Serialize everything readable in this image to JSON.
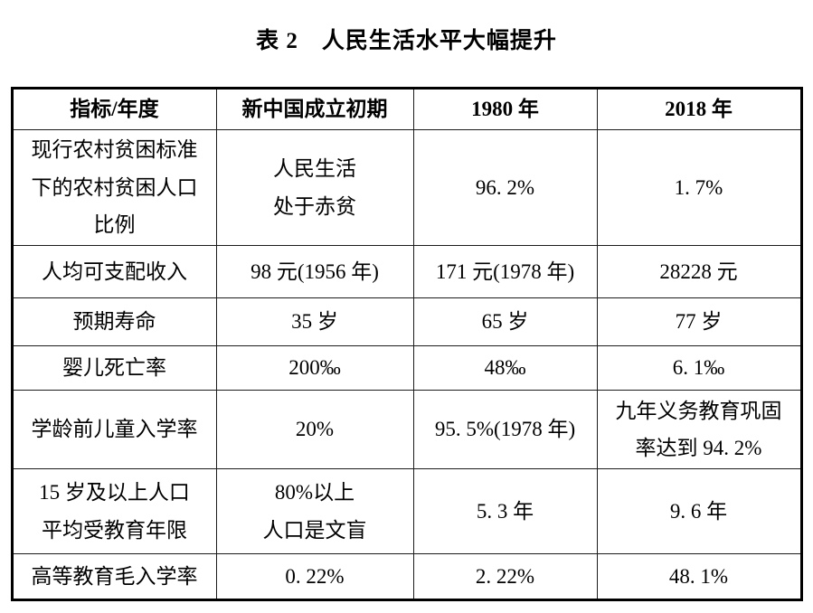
{
  "page": {
    "title": "表 2　人民生活水平大幅提升"
  },
  "colors": {
    "background": "#ffffff",
    "text": "#000000",
    "border": "#000000"
  },
  "table": {
    "header": [
      "指标/年度",
      "新中国成立初期",
      "1980 年",
      "2018 年"
    ],
    "rows": [
      {
        "cells": [
          "现行农村贫困标准\n下的农村贫困人口\n比例",
          "人民生活\n处于赤贫",
          "96. 2%",
          "1. 7%"
        ]
      },
      {
        "cells": [
          "人均可支配收入",
          "98 元(1956 年)",
          "171 元(1978 年)",
          "28228 元"
        ]
      },
      {
        "cells": [
          "预期寿命",
          "35 岁",
          "65 岁",
          "77 岁"
        ]
      },
      {
        "cells": [
          "婴儿死亡率",
          "200‰",
          "48‰",
          "6. 1‰"
        ]
      },
      {
        "cells": [
          "学龄前儿童入学率",
          "20%",
          "95. 5%(1978 年)",
          "九年义务教育巩固\n率达到 94. 2%"
        ]
      },
      {
        "cells": [
          "15 岁及以上人口\n平均受教育年限",
          "80%以上\n人口是文盲",
          "5. 3 年",
          "9. 6 年"
        ]
      },
      {
        "cells": [
          "高等教育毛入学率",
          "0. 22%",
          "2. 22%",
          "48. 1%"
        ]
      }
    ]
  }
}
